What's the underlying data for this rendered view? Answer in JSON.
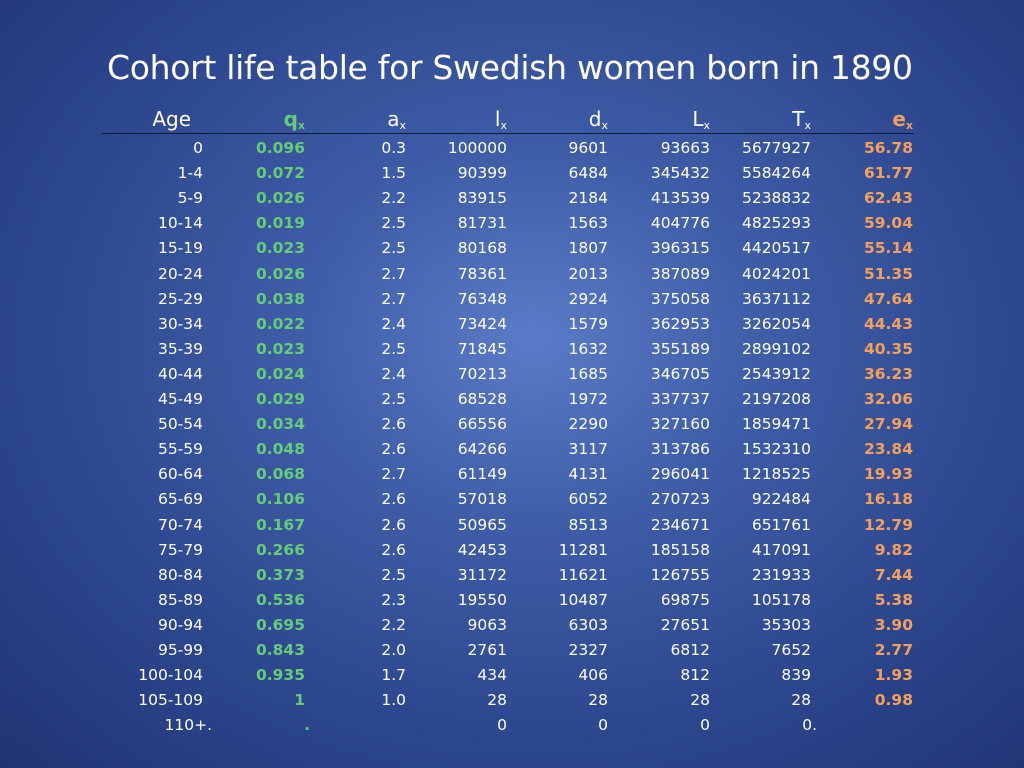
{
  "title": "Cohort life table for Swedish women born in 1890",
  "colors": {
    "qx": "#66cc77",
    "ex": "#f5a05a",
    "text": "#ffffff"
  },
  "headers": [
    {
      "base": "Age",
      "sub": ""
    },
    {
      "base": "q",
      "sub": "x"
    },
    {
      "base": "a",
      "sub": "x"
    },
    {
      "base": "l",
      "sub": "x"
    },
    {
      "base": "d",
      "sub": "x"
    },
    {
      "base": "L",
      "sub": "x"
    },
    {
      "base": "T",
      "sub": "x"
    },
    {
      "base": "e",
      "sub": "x"
    }
  ],
  "rows": [
    [
      "0",
      "0.096",
      "0.3",
      "100000",
      "9601",
      "93663",
      "5677927",
      "56.78"
    ],
    [
      "1-4",
      "0.072",
      "1.5",
      "90399",
      "6484",
      "345432",
      "5584264",
      "61.77"
    ],
    [
      "5-9",
      "0.026",
      "2.2",
      "83915",
      "2184",
      "413539",
      "5238832",
      "62.43"
    ],
    [
      "10-14",
      "0.019",
      "2.5",
      "81731",
      "1563",
      "404776",
      "4825293",
      "59.04"
    ],
    [
      "15-19",
      "0.023",
      "2.5",
      "80168",
      "1807",
      "396315",
      "4420517",
      "55.14"
    ],
    [
      "20-24",
      "0.026",
      "2.7",
      "78361",
      "2013",
      "387089",
      "4024201",
      "51.35"
    ],
    [
      "25-29",
      "0.038",
      "2.7",
      "76348",
      "2924",
      "375058",
      "3637112",
      "47.64"
    ],
    [
      "30-34",
      "0.022",
      "2.4",
      "73424",
      "1579",
      "362953",
      "3262054",
      "44.43"
    ],
    [
      "35-39",
      "0.023",
      "2.5",
      "71845",
      "1632",
      "355189",
      "2899102",
      "40.35"
    ],
    [
      "40-44",
      "0.024",
      "2.4",
      "70213",
      "1685",
      "346705",
      "2543912",
      "36.23"
    ],
    [
      "45-49",
      "0.029",
      "2.5",
      "68528",
      "1972",
      "337737",
      "2197208",
      "32.06"
    ],
    [
      "50-54",
      "0.034",
      "2.6",
      "66556",
      "2290",
      "327160",
      "1859471",
      "27.94"
    ],
    [
      "55-59",
      "0.048",
      "2.6",
      "64266",
      "3117",
      "313786",
      "1532310",
      "23.84"
    ],
    [
      "60-64",
      "0.068",
      "2.7",
      "61149",
      "4131",
      "296041",
      "1218525",
      "19.93"
    ],
    [
      "65-69",
      "0.106",
      "2.6",
      "57018",
      "6052",
      "270723",
      "922484",
      "16.18"
    ],
    [
      "70-74",
      "0.167",
      "2.6",
      "50965",
      "8513",
      "234671",
      "651761",
      "12.79"
    ],
    [
      "75-79",
      "0.266",
      "2.6",
      "42453",
      "11281",
      "185158",
      "417091",
      "9.82"
    ],
    [
      "80-84",
      "0.373",
      "2.5",
      "31172",
      "11621",
      "126755",
      "231933",
      "7.44"
    ],
    [
      "85-89",
      "0.536",
      "2.3",
      "19550",
      "10487",
      "69875",
      "105178",
      "5.38"
    ],
    [
      "90-94",
      "0.695",
      "2.2",
      "9063",
      "6303",
      "27651",
      "35303",
      "3.90"
    ],
    [
      "95-99",
      "0.843",
      "2.0",
      "2761",
      "2327",
      "6812",
      "7652",
      "2.77"
    ],
    [
      "100-104",
      "0.935",
      "1.7",
      "434",
      "406",
      "812",
      "839",
      "1.93"
    ],
    [
      "105-109",
      "1",
      "1.0",
      "28",
      "28",
      "28",
      "28",
      "0.98"
    ],
    [
      "110+.",
      ".",
      "",
      "0",
      "0",
      "0",
      "0.",
      ""
    ]
  ]
}
